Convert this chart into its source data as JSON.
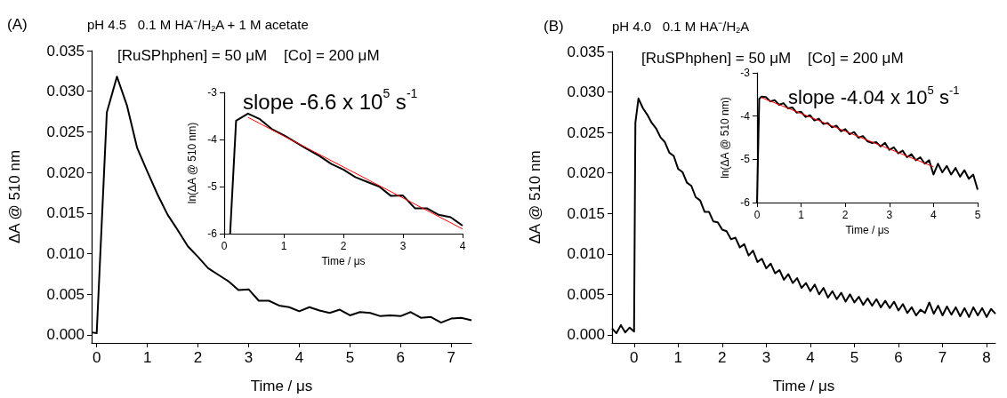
{
  "chart_data": [
    {
      "type": "line",
      "xlabel": "Time / μs",
      "ylabel": "ΔA @ 510 nm",
      "marker": "none",
      "xlim": [
        -0.1,
        7.4
      ],
      "xticks": [
        0,
        1,
        2,
        3,
        4,
        5,
        6,
        7
      ],
      "ylim": [
        -0.001,
        0.035
      ],
      "yticks": [
        {
          "value": 0,
          "label": "0.000"
        },
        {
          "value": 0.005,
          "label": "0.005"
        },
        {
          "value": 0.01,
          "label": "0.010"
        },
        {
          "value": 0.015,
          "label": "0.015"
        },
        {
          "value": 0.02,
          "label": "0.020"
        },
        {
          "value": 0.025,
          "label": "0.025"
        },
        {
          "value": 0.03,
          "label": "0.030"
        },
        {
          "value": 0.035,
          "label": "0.035"
        }
      ],
      "annotations": [
        "(A)",
        "pH 4.5   0.1 M HA⁻/H$_{2}$A + 1 M acetate",
        "[RuSPhphen] = 50 μM    [Co] = 200 μM"
      ],
      "series": [
        {
          "color": "#000000",
          "x": [
            -0.1,
            0,
            0.2,
            0.4,
            0.6,
            0.8,
            1.0,
            1.2,
            1.4,
            1.6,
            1.8,
            2.0,
            2.2,
            2.4,
            2.6,
            2.8,
            3.0,
            3.2,
            3.4,
            3.6,
            3.8,
            4.0,
            4.2,
            4.4,
            4.6,
            4.8,
            5.0,
            5.2,
            5.4,
            5.6,
            5.8,
            6.0,
            6.2,
            6.4,
            6.6,
            6.8,
            7.0,
            7.2,
            7.4
          ],
          "values": [
            0.0003,
            0.0002,
            0.0274,
            0.0318,
            0.0282,
            0.023,
            0.0201,
            0.0173,
            0.0148,
            0.0129,
            0.0109,
            0.0096,
            0.0082,
            0.0074,
            0.0066,
            0.0055,
            0.0056,
            0.0042,
            0.0042,
            0.0036,
            0.0034,
            0.0029,
            0.0034,
            0.003,
            0.0027,
            0.0031,
            0.0024,
            0.0028,
            0.0027,
            0.0023,
            0.0024,
            0.0023,
            0.0028,
            0.0021,
            0.0022,
            0.0015,
            0.002,
            0.0021,
            0.0018
          ]
        }
      ]
    },
    {
      "type": "line",
      "xlabel": "Time / μs",
      "ylabel": "ln(ΔA @ 510 nm)",
      "marker": "none",
      "xlim": [
        0,
        4
      ],
      "xticks": [
        0,
        1,
        2,
        3,
        4
      ],
      "ylim": [
        -6,
        -3
      ],
      "yticks": [
        -6,
        -5,
        -4,
        -3
      ],
      "annotations": [
        "slope -6.6 x 10$^{5}$ s$^{-1}$"
      ],
      "series": [
        {
          "color": "#000000",
          "x": [
            0.1,
            0.2,
            0.4,
            0.6,
            0.8,
            1.0,
            1.2,
            1.4,
            1.6,
            1.8,
            2.0,
            2.2,
            2.4,
            2.6,
            2.8,
            3.0,
            3.2,
            3.4,
            3.6,
            3.8,
            4.0
          ],
          "values": [
            -6,
            -3.6,
            -3.45,
            -3.57,
            -3.78,
            -3.91,
            -4.06,
            -4.21,
            -4.35,
            -4.52,
            -4.64,
            -4.8,
            -4.9,
            -5.0,
            -5.2,
            -5.19,
            -5.46,
            -5.46,
            -5.6,
            -5.65,
            -5.83
          ]
        },
        {
          "type": "line",
          "color": "#ff0000",
          "x": [
            0.4,
            4
          ],
          "values": [
            -3.53,
            -5.9
          ]
        }
      ]
    },
    {
      "type": "line",
      "xlabel": "Time / μs",
      "ylabel": "ΔA @ 510 nm",
      "marker": "none",
      "xlim": [
        -0.5,
        8.2
      ],
      "xticks": [
        0,
        1,
        2,
        3,
        4,
        5,
        6,
        7,
        8
      ],
      "ylim": [
        -0.001,
        0.035
      ],
      "yticks": [
        {
          "value": 0,
          "label": "0.000"
        },
        {
          "value": 0.005,
          "label": "0.005"
        },
        {
          "value": 0.01,
          "label": "0.010"
        },
        {
          "value": 0.015,
          "label": "0.015"
        },
        {
          "value": 0.02,
          "label": "0.020"
        },
        {
          "value": 0.025,
          "label": "0.025"
        },
        {
          "value": 0.03,
          "label": "0.030"
        },
        {
          "value": 0.035,
          "label": "0.035"
        }
      ],
      "annotations": [
        "(B)",
        "pH 4.0   0.1 M HA⁻/H$_{2}$A",
        "[RuSPhphen] = 50 μM    [Co] = 200 μM"
      ],
      "series": [
        {
          "color": "#000000",
          "x": [
            -0.5,
            -0.4,
            -0.3,
            -0.2,
            -0.1,
            0,
            0.03,
            0.1,
            0.2,
            0.3,
            0.4,
            0.5,
            0.6,
            0.7,
            0.8,
            0.9,
            1.0,
            1.1,
            1.2,
            1.3,
            1.4,
            1.5,
            1.6,
            1.7,
            1.8,
            1.9,
            2.0,
            2.1,
            2.2,
            2.3,
            2.4,
            2.5,
            2.6,
            2.7,
            2.8,
            2.9,
            3.0,
            3.1,
            3.2,
            3.3,
            3.4,
            3.5,
            3.6,
            3.7,
            3.8,
            3.9,
            4.0,
            4.1,
            4.2,
            4.3,
            4.4,
            4.5,
            4.6,
            4.7,
            4.8,
            4.9,
            5.0,
            5.1,
            5.2,
            5.3,
            5.4,
            5.5,
            5.6,
            5.7,
            5.8,
            5.9,
            6.0,
            6.1,
            6.2,
            6.3,
            6.4,
            6.5,
            6.6,
            6.7,
            6.8,
            6.9,
            7.0,
            7.1,
            7.2,
            7.3,
            7.4,
            7.5,
            7.6,
            7.7,
            7.8,
            7.9,
            8.0,
            8.1,
            8.2
          ],
          "values": [
            0.0008,
            0.0002,
            0.0012,
            0.0003,
            0.0009,
            0.0004,
            0.0262,
            0.0292,
            0.028,
            0.0272,
            0.0262,
            0.0255,
            0.0244,
            0.0238,
            0.0225,
            0.0221,
            0.0205,
            0.0201,
            0.0188,
            0.0184,
            0.017,
            0.0166,
            0.0152,
            0.0152,
            0.014,
            0.0139,
            0.013,
            0.0128,
            0.0118,
            0.012,
            0.0108,
            0.0112,
            0.0098,
            0.0104,
            0.009,
            0.0094,
            0.0082,
            0.0088,
            0.0076,
            0.008,
            0.0068,
            0.0075,
            0.0064,
            0.007,
            0.0058,
            0.0064,
            0.0054,
            0.0062,
            0.005,
            0.0058,
            0.0046,
            0.0054,
            0.0044,
            0.0052,
            0.0041,
            0.005,
            0.004,
            0.0047,
            0.0037,
            0.0045,
            0.0036,
            0.0044,
            0.0034,
            0.0042,
            0.0033,
            0.0041,
            0.003,
            0.0038,
            0.0027,
            0.0034,
            0.0024,
            0.0031,
            0.0027,
            0.004,
            0.0026,
            0.0036,
            0.0024,
            0.0035,
            0.0025,
            0.0034,
            0.0023,
            0.0033,
            0.0022,
            0.0034,
            0.0024,
            0.0033,
            0.0022,
            0.0032,
            0.0026
          ]
        }
      ]
    },
    {
      "type": "line",
      "xlabel": "Time / μs",
      "ylabel": "ln(ΔA @ 510 nm)",
      "marker": "none",
      "xlim": [
        0,
        5
      ],
      "xticks": [
        0,
        1,
        2,
        3,
        4,
        5
      ],
      "ylim": [
        -6,
        -3
      ],
      "yticks": [
        -6,
        -5,
        -4,
        -3
      ],
      "annotations": [
        "slope -4.04 x 10$^{5}$ s$^{-1}$"
      ],
      "series": [
        {
          "color": "#000000",
          "x": [
            0,
            0.05,
            0.1,
            0.2,
            0.3,
            0.4,
            0.5,
            0.6,
            0.7,
            0.8,
            0.9,
            1.0,
            1.1,
            1.2,
            1.3,
            1.4,
            1.5,
            1.6,
            1.7,
            1.8,
            1.9,
            2.0,
            2.1,
            2.2,
            2.3,
            2.4,
            2.5,
            2.6,
            2.7,
            2.8,
            2.9,
            3.0,
            3.1,
            3.2,
            3.3,
            3.4,
            3.5,
            3.6,
            3.7,
            3.8,
            3.9,
            4.0,
            4.1,
            4.2,
            4.3,
            4.4,
            4.5,
            4.6,
            4.7,
            4.8,
            4.9,
            5.0
          ],
          "values": [
            -6,
            -3.6,
            -3.55,
            -3.56,
            -3.66,
            -3.63,
            -3.74,
            -3.7,
            -3.82,
            -3.8,
            -3.92,
            -3.9,
            -4.02,
            -3.98,
            -4.1,
            -4.06,
            -4.18,
            -4.16,
            -4.26,
            -4.22,
            -4.35,
            -4.3,
            -4.42,
            -4.37,
            -4.5,
            -4.46,
            -4.58,
            -4.62,
            -4.6,
            -4.7,
            -4.62,
            -4.78,
            -4.72,
            -4.86,
            -4.8,
            -4.95,
            -4.88,
            -5.02,
            -4.95,
            -5.1,
            -5.02,
            -5.35,
            -5.1,
            -5.3,
            -5.15,
            -5.35,
            -5.2,
            -5.4,
            -5.25,
            -5.45,
            -5.35,
            -5.7
          ]
        },
        {
          "color": "#ff0000",
          "x": [
            0.1,
            4
          ],
          "values": [
            -3.57,
            -5.17
          ]
        }
      ]
    }
  ]
}
